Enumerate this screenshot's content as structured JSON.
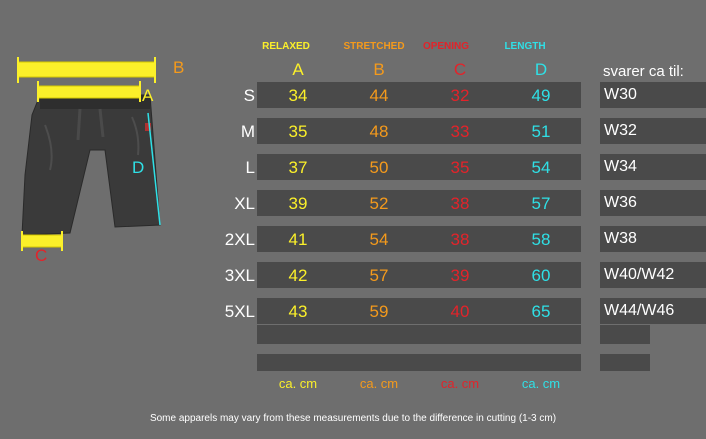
{
  "columns": [
    {
      "label": "RELAXED",
      "letter": "A",
      "color": "#fbf02a"
    },
    {
      "label": "STRETCHED",
      "letter": "B",
      "color": "#f49a1c"
    },
    {
      "label": "OPENING",
      "letter": "C",
      "color": "#e3232a"
    },
    {
      "label": "LENGTH",
      "letter": "D",
      "color": "#2fe0e6"
    }
  ],
  "equivalent_header": "svarer ca til:",
  "rows": [
    {
      "size": "S",
      "a": "34",
      "b": "44",
      "c": "32",
      "d": "49",
      "waist": "W30"
    },
    {
      "size": "M",
      "a": "35",
      "b": "48",
      "c": "33",
      "d": "51",
      "waist": "W32"
    },
    {
      "size": "L",
      "a": "37",
      "b": "50",
      "c": "35",
      "d": "54",
      "waist": "W34"
    },
    {
      "size": "XL",
      "a": "39",
      "b": "52",
      "c": "38",
      "d": "57",
      "waist": "W36"
    },
    {
      "size": "2XL",
      "a": "41",
      "b": "54",
      "c": "38",
      "d": "58",
      "waist": "W38"
    },
    {
      "size": "3XL",
      "a": "42",
      "b": "57",
      "c": "39",
      "d": "60",
      "waist": "W40/W42"
    },
    {
      "size": "5XL",
      "a": "43",
      "b": "59",
      "c": "40",
      "d": "65",
      "waist": "W44/W46"
    }
  ],
  "unit": "ca. cm",
  "diagram": {
    "label_a": "A",
    "label_b": "B",
    "label_c": "C",
    "label_d": "D"
  },
  "footnote": "Some apparels may vary from these measurements due to the difference in cutting (1-3 cm)"
}
